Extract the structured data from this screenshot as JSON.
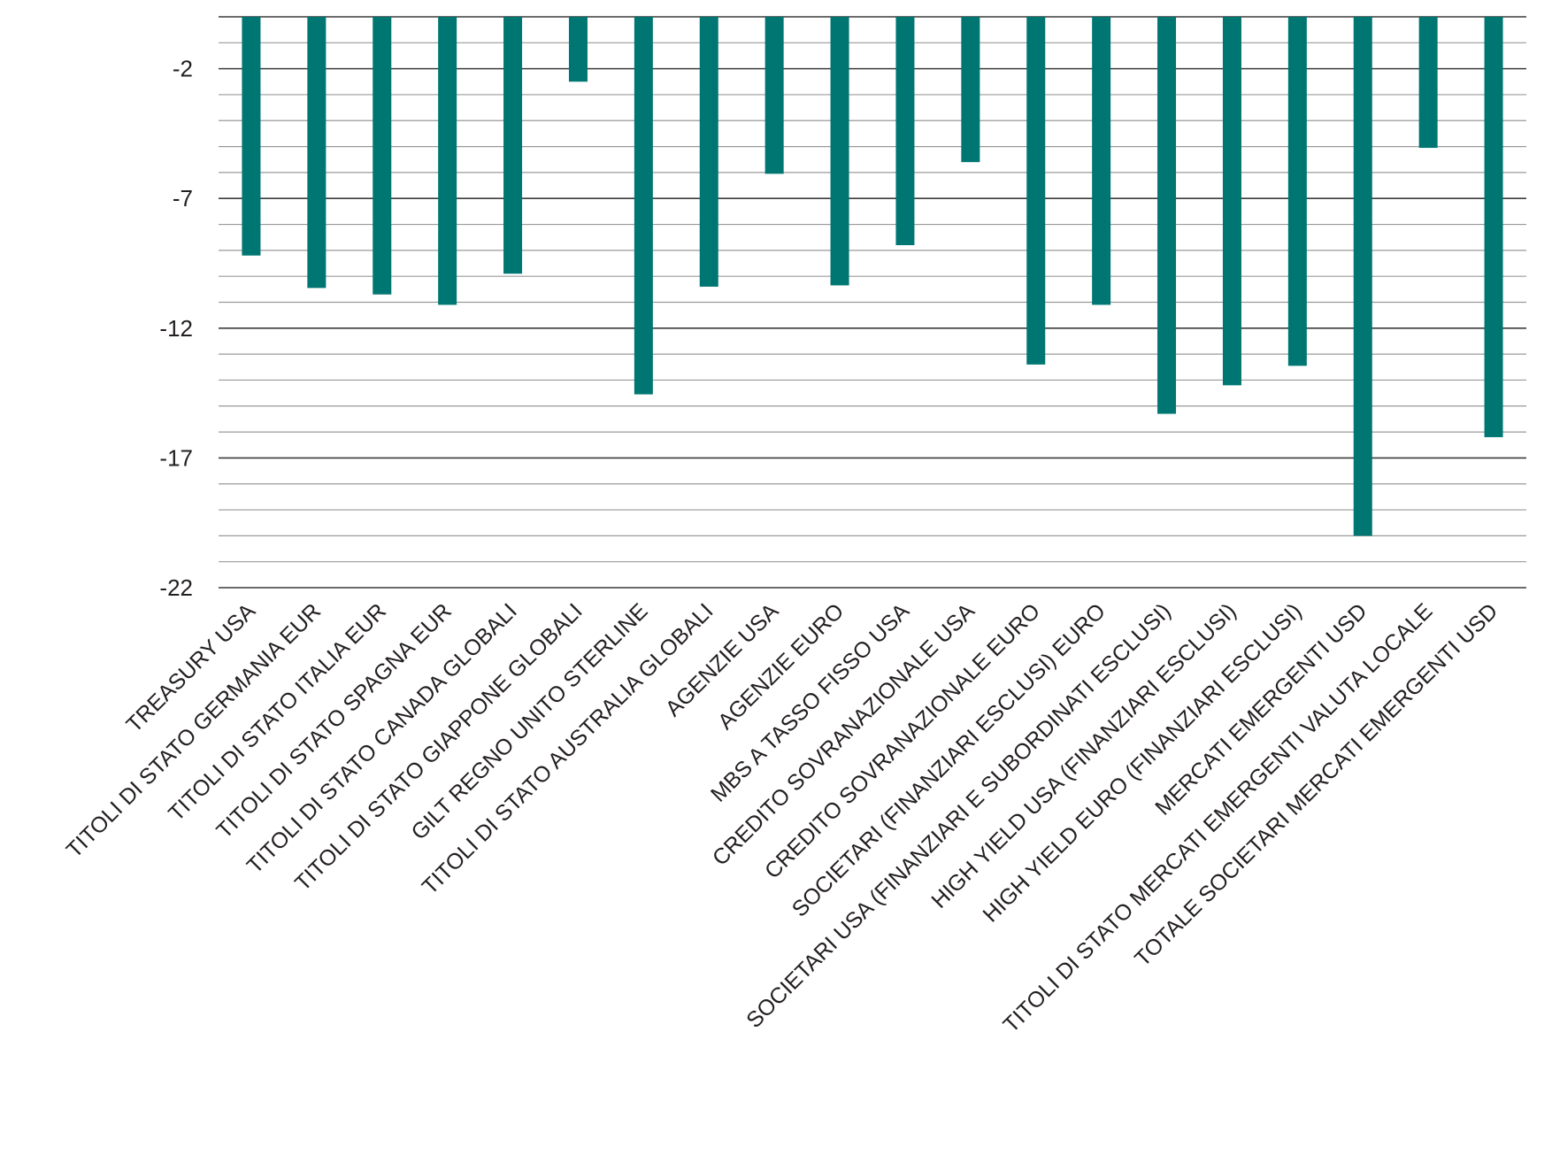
{
  "colors": {
    "bar": "#007672",
    "major_grid": "#3c3c3c",
    "minor_grid": "#9a9a9a",
    "text": "#231f20"
  },
  "chart_data": {
    "type": "bar",
    "title": "",
    "xlabel": "",
    "ylabel": "",
    "ylim": [
      -22,
      0
    ],
    "y_major_ticks": [
      -2,
      -7,
      -12,
      -17,
      -22
    ],
    "y_minor_step": 1,
    "grid": true,
    "legend": "none",
    "categories": [
      "TREASURY USA",
      "TITOLI DI STATO GERMANIA EUR",
      "TITOLI DI STATO ITALIA EUR",
      "TITOLI DI STATO SPAGNA EUR",
      "TITOLI DI STATO CANADA GLOBALI",
      "TITOLI DI STATO GIAPPONE GLOBALI",
      "GILT REGNO UNITO STERLINE",
      "TITOLI DI STATO AUSTRALIA GLOBALI",
      "AGENZIE USA",
      "AGENZIE EURO",
      "MBS A TASSO FISSO USA",
      "CREDITO SOVRANAZIONALE USA",
      "CREDITO SOVRANAZIONALE EURO",
      "SOCIETARI (FINANZIARI ESCLUSI) EURO",
      "SOCIETARI USA (FINANZIARI E SUBORDINATI ESCLUSI)",
      "HIGH YIELD USA (FINANZIARI ESCLUSI)",
      "HIGH YIELD EURO (FINANZIARI ESCLUSI)",
      "MERCATI EMERGENTI USD",
      "TITOLI DI STATO MERCATI EMERGENTI VALUTA LOCALE",
      "TOTALE SOCIETARI MERCATI EMERGENTI USD"
    ],
    "values": [
      -9.2,
      -10.45,
      -10.7,
      -11.1,
      -9.9,
      -2.5,
      -14.55,
      -10.4,
      -6.05,
      -10.35,
      -8.8,
      -5.6,
      -13.4,
      -11.1,
      -15.3,
      -14.2,
      -13.45,
      -20.0,
      -5.05,
      -16.2
    ]
  }
}
